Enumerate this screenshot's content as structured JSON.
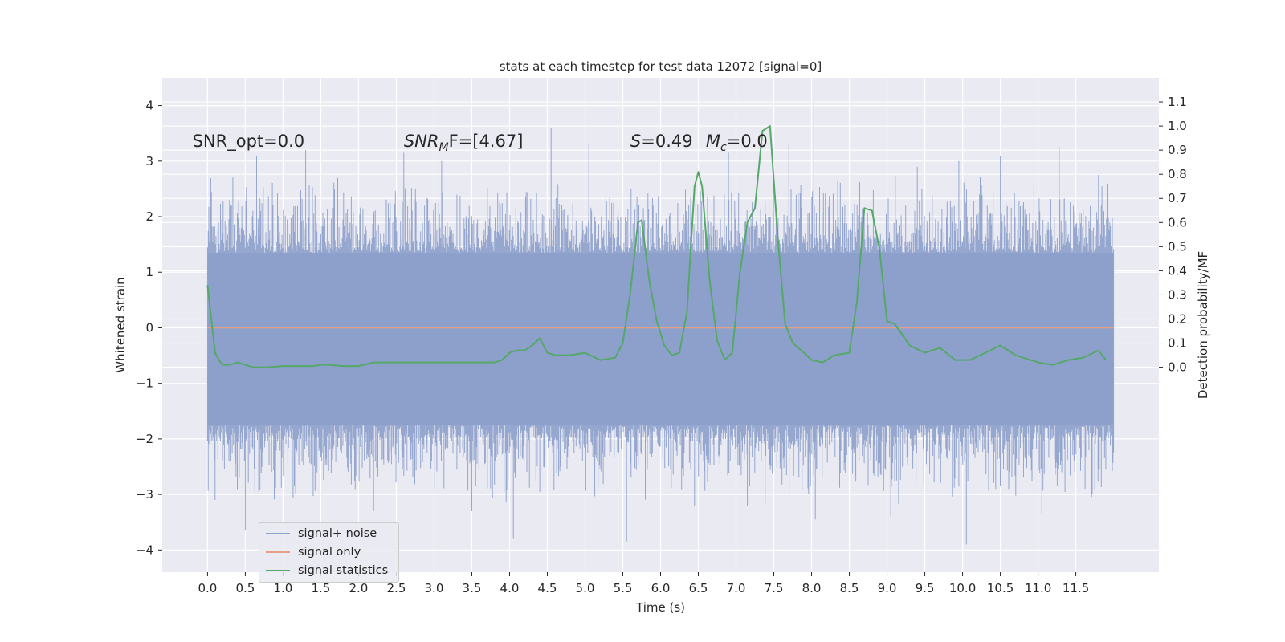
{
  "chart_data": {
    "type": "line",
    "title": "stats at each timestep for test data 12072 [signal=0]",
    "xlabel": "Time (s)",
    "ylabel_left": "Whitened strain",
    "ylabel_right": "Detection probability/MF",
    "xlim": [
      -0.6,
      12.6
    ],
    "ylim_left": [
      -4.4,
      4.5
    ],
    "ylim_right": [
      -0.85,
      1.2
    ],
    "xticks": [
      0.0,
      0.5,
      1.0,
      1.5,
      2.0,
      2.5,
      3.0,
      3.5,
      4.0,
      4.5,
      5.0,
      5.5,
      6.0,
      6.5,
      7.0,
      7.5,
      8.0,
      8.5,
      9.0,
      9.5,
      10.0,
      10.5,
      11.0,
      11.5
    ],
    "xtick_labels": [
      "0.0",
      "0.5",
      "1.0",
      "1.5",
      "2.0",
      "2.5",
      "3.0",
      "3.5",
      "4.0",
      "4.5",
      "5.0",
      "5.5",
      "6.0",
      "6.5",
      "7.0",
      "7.5",
      "8.0",
      "8.5",
      "9.0",
      "9.5",
      "10.0",
      "10.5",
      "11.0",
      "11.5"
    ],
    "yticks_left": [
      -4,
      -3,
      -2,
      -1,
      0,
      1,
      2,
      3,
      4
    ],
    "ytick_labels_left": [
      "−4",
      "−3",
      "−2",
      "−1",
      "0",
      "1",
      "2",
      "3",
      "4"
    ],
    "yticks_right": [
      0.0,
      0.1,
      0.2,
      0.3,
      0.4,
      0.5,
      0.6,
      0.7,
      0.8,
      0.9,
      1.0,
      1.1
    ],
    "ytick_labels_right": [
      "0.0",
      "0.1",
      "0.2",
      "0.3",
      "0.4",
      "0.5",
      "0.6",
      "0.7",
      "0.8",
      "0.9",
      "1.0",
      "1.1"
    ],
    "grid": true,
    "background": "#eaeaf2",
    "annotations": [
      {
        "id": "snr-opt",
        "text": "SNR_opt=0.0",
        "x": -0.2,
        "y": 3.3
      },
      {
        "id": "snr-mf",
        "text": "SNR",
        "sub": "M",
        "rest": "F=[4.67]",
        "x": 2.6,
        "y": 3.3
      },
      {
        "id": "stat-s",
        "text": "S",
        "rest": "=0.49",
        "x": 5.6,
        "y": 3.3
      },
      {
        "id": "mc",
        "text": "M",
        "sub": "c",
        "rest": "=0.0",
        "x": 6.6,
        "y": 3.3
      }
    ],
    "series": [
      {
        "name": "signal+ noise",
        "color": "#8da0cb",
        "axis": "left",
        "t_range": [
          0.0,
          12.0
        ],
        "core_band": [
          -1.75,
          1.35
        ],
        "envelope": [
          -2.4,
          2.0
        ],
        "extreme_peaks": [
          {
            "t": 8.03,
            "v": 4.1
          },
          {
            "t": 4.55,
            "v": 3.6
          },
          {
            "t": 11.28,
            "v": 3.25
          },
          {
            "t": 0.65,
            "v": 3.1
          },
          {
            "t": 2.6,
            "v": 3.15
          },
          {
            "t": 5.05,
            "v": 3.3
          },
          {
            "t": 9.95,
            "v": 3.0
          },
          {
            "t": 10.5,
            "v": 3.1
          },
          {
            "t": 11.8,
            "v": 2.75
          },
          {
            "t": 7.7,
            "v": 3.3
          },
          {
            "t": 1.3,
            "v": 3.2
          },
          {
            "t": 6.9,
            "v": 3.15
          },
          {
            "t": 3.1,
            "v": 3.0
          },
          {
            "t": 9.4,
            "v": 2.9
          },
          {
            "t": 0.5,
            "v": -3.65
          },
          {
            "t": 4.05,
            "v": -3.8
          },
          {
            "t": 5.55,
            "v": -3.85
          },
          {
            "t": 8.05,
            "v": -3.45
          },
          {
            "t": 10.05,
            "v": -3.9
          },
          {
            "t": 11.05,
            "v": -3.35
          },
          {
            "t": 9.05,
            "v": -3.4
          },
          {
            "t": 2.2,
            "v": -3.3
          },
          {
            "t": 7.15,
            "v": -3.2
          },
          {
            "t": 3.5,
            "v": -3.3
          },
          {
            "t": 0.1,
            "v": -3.1
          },
          {
            "t": 6.45,
            "v": -3.2
          }
        ]
      },
      {
        "name": "signal only",
        "color": "#e5a085",
        "axis": "left",
        "x": [
          0.0,
          12.0
        ],
        "y": [
          0.0,
          0.0
        ]
      },
      {
        "name": "signal statistics",
        "color": "#55a868",
        "axis": "right",
        "x": [
          0.0,
          0.1,
          0.15,
          0.2,
          0.3,
          0.4,
          0.5,
          0.6,
          0.8,
          1.0,
          1.2,
          1.4,
          1.5,
          1.6,
          1.8,
          2.0,
          2.2,
          2.4,
          2.6,
          2.8,
          3.0,
          3.2,
          3.4,
          3.6,
          3.8,
          3.9,
          4.0,
          4.1,
          4.2,
          4.3,
          4.4,
          4.5,
          4.6,
          4.8,
          5.0,
          5.2,
          5.4,
          5.5,
          5.6,
          5.7,
          5.75,
          5.85,
          5.95,
          6.05,
          6.15,
          6.25,
          6.35,
          6.45,
          6.5,
          6.55,
          6.65,
          6.75,
          6.85,
          6.95,
          7.05,
          7.15,
          7.25,
          7.35,
          7.45,
          7.55,
          7.65,
          7.75,
          7.9,
          8.0,
          8.15,
          8.3,
          8.5,
          8.6,
          8.7,
          8.8,
          8.9,
          9.0,
          9.1,
          9.3,
          9.5,
          9.7,
          9.9,
          10.1,
          10.3,
          10.5,
          10.7,
          11.0,
          11.2,
          11.4,
          11.6,
          11.8,
          11.9
        ],
        "y": [
          0.34,
          0.06,
          0.03,
          0.01,
          0.01,
          0.02,
          0.01,
          0.0,
          0.0,
          0.005,
          0.005,
          0.005,
          0.01,
          0.01,
          0.005,
          0.005,
          0.02,
          0.02,
          0.02,
          0.02,
          0.02,
          0.02,
          0.02,
          0.02,
          0.02,
          0.03,
          0.06,
          0.07,
          0.07,
          0.09,
          0.12,
          0.06,
          0.05,
          0.05,
          0.06,
          0.03,
          0.04,
          0.1,
          0.31,
          0.6,
          0.61,
          0.36,
          0.19,
          0.09,
          0.05,
          0.06,
          0.23,
          0.75,
          0.81,
          0.75,
          0.36,
          0.11,
          0.03,
          0.06,
          0.39,
          0.6,
          0.66,
          0.98,
          1.0,
          0.55,
          0.18,
          0.1,
          0.06,
          0.03,
          0.02,
          0.05,
          0.06,
          0.27,
          0.66,
          0.65,
          0.49,
          0.19,
          0.18,
          0.09,
          0.06,
          0.08,
          0.03,
          0.03,
          0.06,
          0.09,
          0.05,
          0.02,
          0.01,
          0.03,
          0.04,
          0.07,
          0.03
        ]
      }
    ],
    "legend": {
      "position": "lower-left",
      "labels": [
        "signal+ noise",
        "signal only",
        "signal statistics"
      ],
      "colors": [
        "#8da0cb",
        "#e5a085",
        "#55a868"
      ]
    }
  }
}
